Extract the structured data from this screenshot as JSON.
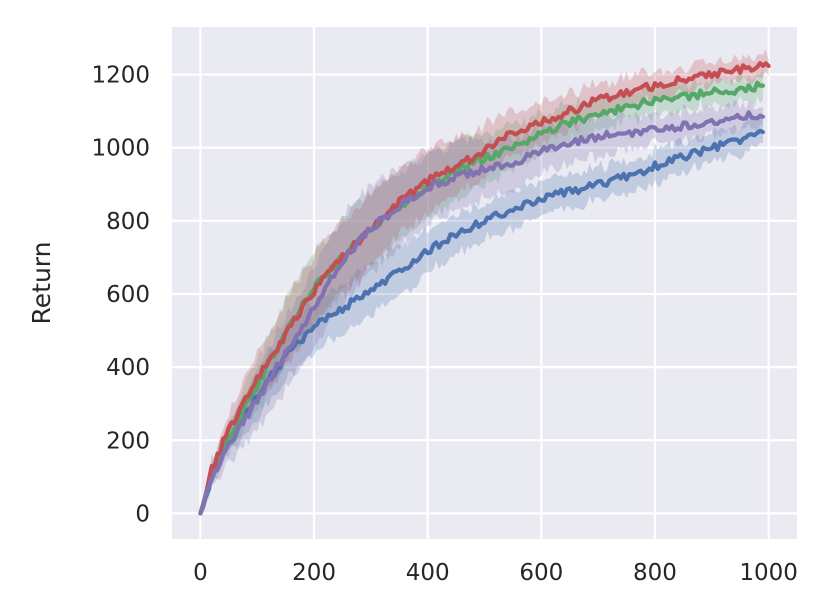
{
  "chart_data": {
    "type": "line",
    "title": "",
    "xlabel": "",
    "ylabel": "Return",
    "xlim": [
      -50,
      1050
    ],
    "ylim": [
      -70,
      1330
    ],
    "xticks": [
      0,
      200,
      400,
      600,
      800,
      1000
    ],
    "yticks": [
      0,
      200,
      400,
      600,
      800,
      1000,
      1200
    ],
    "xtick_labels": [
      "0",
      "200",
      "400",
      "600",
      "800",
      "1000"
    ],
    "ytick_labels": [
      "0",
      "200",
      "400",
      "600",
      "800",
      "1000",
      "1200"
    ],
    "grid": true,
    "legend": "none",
    "background": "#eaeaf2",
    "series": [
      {
        "color": "#4c72b0",
        "x": [
          0,
          20,
          50,
          100,
          150,
          200,
          250,
          300,
          350,
          400,
          450,
          500,
          550,
          600,
          650,
          700,
          750,
          800,
          850,
          900,
          950,
          990
        ],
        "y": [
          0,
          100,
          200,
          320,
          430,
          510,
          560,
          610,
          660,
          720,
          760,
          800,
          830,
          860,
          880,
          900,
          920,
          950,
          975,
          1000,
          1020,
          1045
        ],
        "band": [
          0,
          25,
          40,
          60,
          70,
          70,
          70,
          70,
          70,
          60,
          55,
          50,
          50,
          45,
          45,
          45,
          45,
          45,
          45,
          40,
          40,
          40
        ]
      },
      {
        "color": "#55a868",
        "x": [
          0,
          20,
          50,
          100,
          150,
          200,
          250,
          300,
          350,
          400,
          450,
          500,
          550,
          600,
          650,
          700,
          750,
          800,
          850,
          900,
          950,
          990
        ],
        "y": [
          0,
          110,
          210,
          350,
          490,
          620,
          700,
          780,
          840,
          890,
          940,
          970,
          1000,
          1040,
          1070,
          1090,
          1110,
          1130,
          1140,
          1150,
          1160,
          1170
        ],
        "band": [
          0,
          25,
          40,
          70,
          90,
          100,
          100,
          100,
          90,
          90,
          80,
          70,
          60,
          55,
          50,
          45,
          40,
          40,
          35,
          35,
          35,
          35
        ]
      },
      {
        "color": "#c44e52",
        "x": [
          0,
          20,
          50,
          100,
          150,
          200,
          250,
          300,
          350,
          400,
          450,
          500,
          550,
          600,
          650,
          700,
          750,
          800,
          850,
          900,
          950,
          1000
        ],
        "y": [
          0,
          120,
          230,
          370,
          490,
          610,
          700,
          780,
          850,
          910,
          950,
          990,
          1040,
          1070,
          1100,
          1130,
          1150,
          1170,
          1185,
          1200,
          1215,
          1225
        ],
        "band": [
          0,
          25,
          40,
          70,
          90,
          100,
          100,
          100,
          90,
          90,
          80,
          70,
          60,
          55,
          50,
          45,
          40,
          40,
          35,
          30,
          30,
          30
        ]
      },
      {
        "color": "#8172b2",
        "x": [
          0,
          20,
          50,
          100,
          150,
          200,
          250,
          300,
          350,
          400,
          450,
          500,
          550,
          600,
          650,
          700,
          750,
          800,
          850,
          900,
          950,
          990
        ],
        "y": [
          0,
          100,
          190,
          310,
          440,
          560,
          690,
          780,
          840,
          890,
          920,
          940,
          960,
          990,
          1010,
          1030,
          1040,
          1050,
          1060,
          1070,
          1080,
          1095
        ],
        "band": [
          0,
          25,
          50,
          80,
          100,
          110,
          120,
          120,
          110,
          100,
          90,
          80,
          70,
          60,
          55,
          50,
          45,
          40,
          40,
          35,
          35,
          30
        ]
      }
    ]
  }
}
